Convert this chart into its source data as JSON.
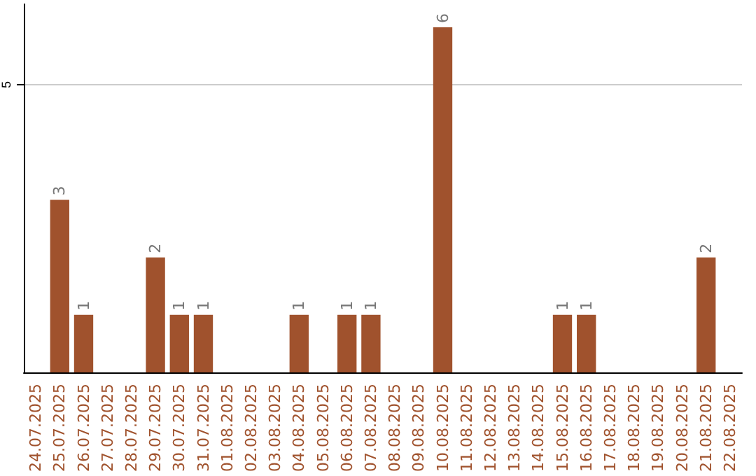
{
  "chart_data": {
    "type": "bar",
    "categories": [
      "24.07.2025",
      "25.07.2025",
      "26.07.2025",
      "27.07.2025",
      "28.07.2025",
      "29.07.2025",
      "30.07.2025",
      "31.07.2025",
      "01.08.2025",
      "02.08.2025",
      "03.08.2025",
      "04.08.2025",
      "05.08.2025",
      "06.08.2025",
      "07.08.2025",
      "08.08.2025",
      "09.08.2025",
      "10.08.2025",
      "11.08.2025",
      "12.08.2025",
      "13.08.2025",
      "14.08.2025",
      "15.08.2025",
      "16.08.2025",
      "17.08.2025",
      "18.08.2025",
      "19.08.2025",
      "20.08.2025",
      "21.08.2025",
      "22.08.2025"
    ],
    "values": [
      0,
      3,
      1,
      0,
      0,
      2,
      1,
      1,
      0,
      0,
      0,
      1,
      0,
      1,
      1,
      0,
      0,
      6,
      0,
      0,
      0,
      0,
      1,
      1,
      0,
      0,
      0,
      0,
      2,
      0
    ],
    "value_labels": [
      null,
      "3",
      "1",
      null,
      null,
      "2",
      "1",
      "1",
      null,
      null,
      null,
      "1",
      null,
      "1",
      "1",
      null,
      null,
      "6",
      null,
      null,
      null,
      null,
      "1",
      "1",
      null,
      null,
      null,
      null,
      "2",
      null
    ],
    "color": "#a0522d",
    "ylim": [
      0,
      6.4
    ],
    "yticks": [
      5
    ],
    "grid": "y"
  }
}
